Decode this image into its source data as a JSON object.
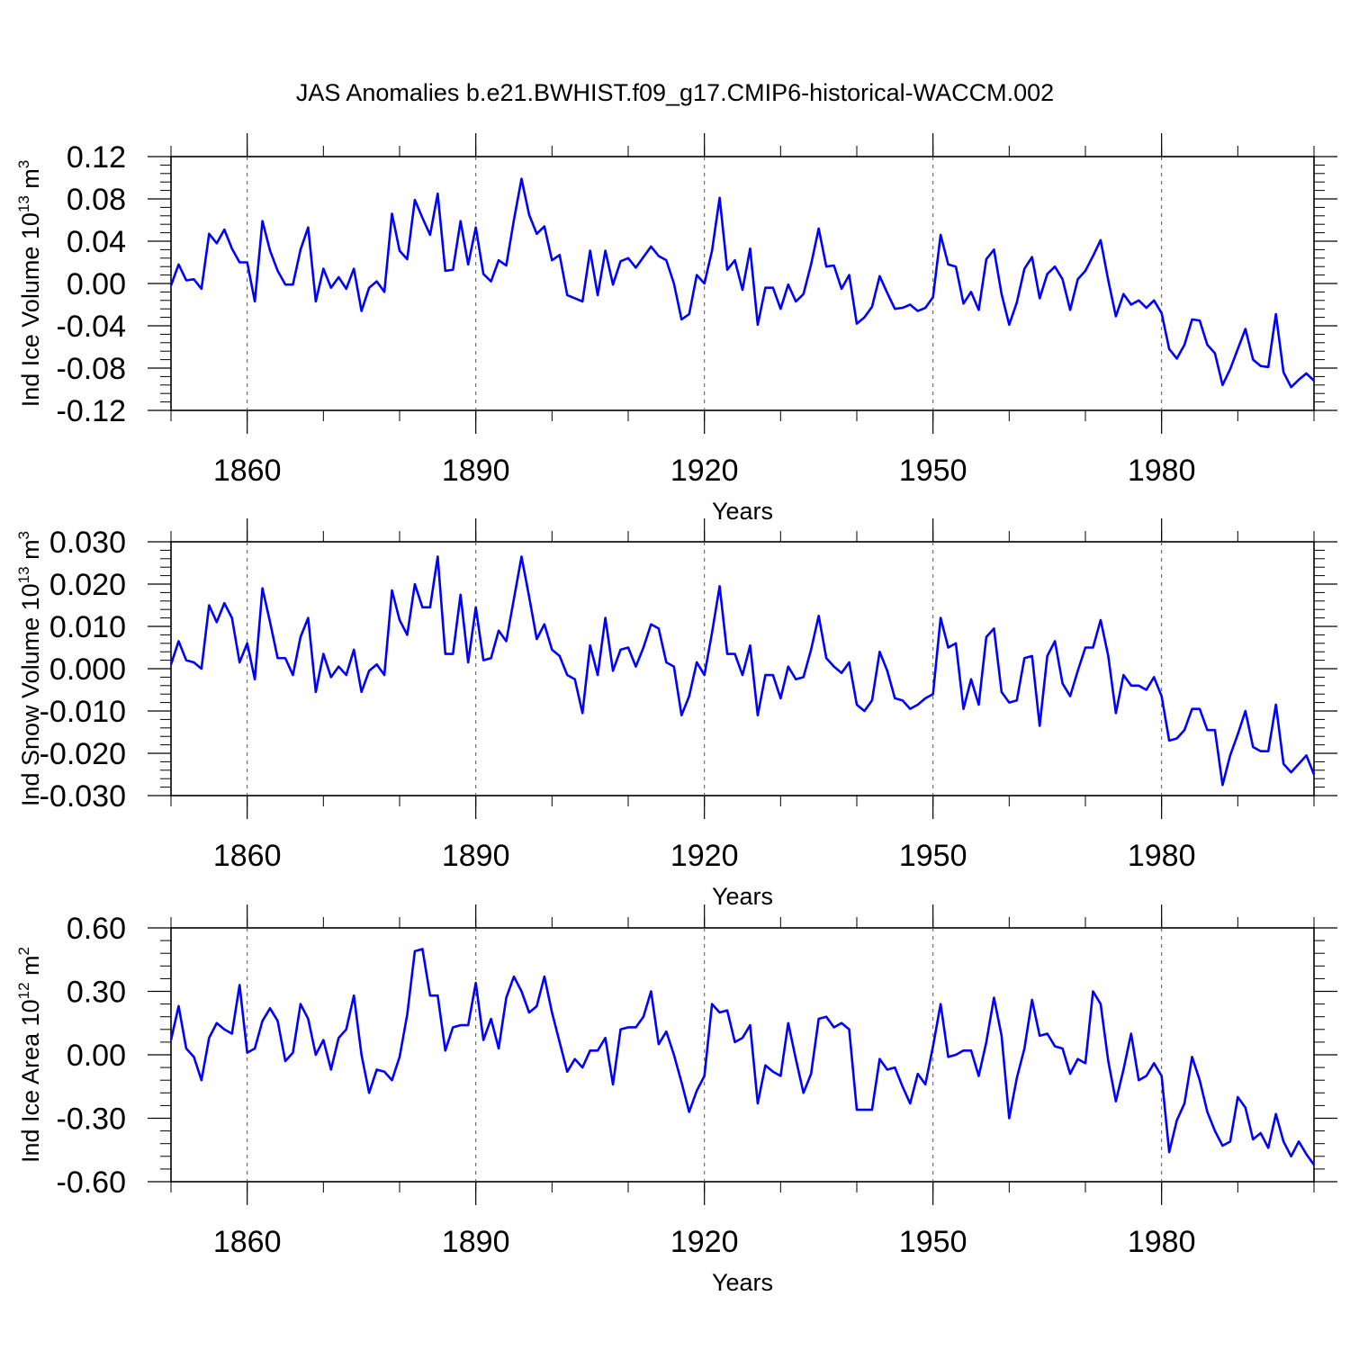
{
  "title": "JAS Anomalies b.e21.BWHIST.f09_g17.CMIP6-historical-WACCM.002",
  "line_color": "#0000ff",
  "chart_data": [
    {
      "type": "line",
      "ylabel": "Ind Ice Volume 10",
      "ylabel_exp": "13",
      "ylabel_unit": "m",
      "ylabel_unit_exp": "3",
      "xlabel": "Years",
      "xlim": [
        1850,
        2000
      ],
      "ylim": [
        -0.12,
        0.12
      ],
      "xticks": [
        1860,
        1890,
        1920,
        1950,
        1980
      ],
      "xtick_labels": [
        "1860",
        "1890",
        "1920",
        "1950",
        "1980"
      ],
      "yticks": [
        0.12,
        0.08,
        0.04,
        0.0,
        -0.04,
        -0.08,
        -0.12
      ],
      "ytick_labels": [
        "0.12",
        "0.08",
        "0.04",
        "0.00",
        "-0.04",
        "-0.08",
        "-0.12"
      ],
      "x_start": 1850,
      "values": [
        -0.002,
        0.018,
        0.003,
        0.004,
        -0.005,
        0.047,
        0.038,
        0.051,
        0.033,
        0.02,
        0.02,
        -0.017,
        0.059,
        0.031,
        0.012,
        -0.001,
        -0.001,
        0.032,
        0.053,
        -0.017,
        0.014,
        -0.004,
        0.006,
        -0.005,
        0.014,
        -0.026,
        -0.004,
        0.002,
        -0.008,
        0.066,
        0.031,
        0.023,
        0.079,
        0.062,
        0.046,
        0.085,
        0.012,
        0.013,
        0.059,
        0.018,
        0.053,
        0.009,
        0.002,
        0.022,
        0.017,
        0.06,
        0.099,
        0.065,
        0.047,
        0.054,
        0.022,
        0.027,
        -0.011,
        -0.014,
        -0.017,
        0.031,
        -0.011,
        0.031,
        -0.001,
        0.021,
        0.024,
        0.015,
        0.025,
        0.035,
        0.026,
        0.022,
        0.0,
        -0.034,
        -0.029,
        0.008,
        0.0,
        0.031,
        0.081,
        0.013,
        0.022,
        -0.006,
        0.033,
        -0.039,
        -0.004,
        -0.004,
        -0.024,
        -0.001,
        -0.017,
        -0.01,
        0.018,
        0.052,
        0.016,
        0.017,
        -0.005,
        0.008,
        -0.038,
        -0.032,
        -0.022,
        0.007,
        -0.009,
        -0.024,
        -0.023,
        -0.02,
        -0.026,
        -0.023,
        -0.013,
        0.046,
        0.018,
        0.016,
        -0.019,
        -0.008,
        -0.025,
        0.023,
        0.032,
        -0.01,
        -0.039,
        -0.018,
        0.014,
        0.025,
        -0.014,
        0.009,
        0.016,
        0.004,
        -0.025,
        0.004,
        0.012,
        0.026,
        0.041,
        0.003,
        -0.031,
        -0.01,
        -0.02,
        -0.016,
        -0.023,
        -0.016,
        -0.028,
        -0.062,
        -0.071,
        -0.058,
        -0.034,
        -0.035,
        -0.058,
        -0.066,
        -0.096,
        -0.081,
        -0.062,
        -0.043,
        -0.072,
        -0.078,
        -0.079,
        -0.029,
        -0.084,
        -0.098,
        -0.091,
        -0.085,
        -0.092
      ]
    },
    {
      "type": "line",
      "ylabel": "Ind Snow Volume 10",
      "ylabel_exp": "13",
      "ylabel_unit": "m",
      "ylabel_unit_exp": "3",
      "xlabel": "Years",
      "xlim": [
        1850,
        2000
      ],
      "ylim": [
        -0.03,
        0.03
      ],
      "xticks": [
        1860,
        1890,
        1920,
        1950,
        1980
      ],
      "xtick_labels": [
        "1860",
        "1890",
        "1920",
        "1950",
        "1980"
      ],
      "yticks": [
        0.03,
        0.02,
        0.01,
        0.0,
        -0.01,
        -0.02,
        -0.03
      ],
      "ytick_labels": [
        "0.030",
        "0.020",
        "0.010",
        "0.000",
        "-0.010",
        "-0.020",
        "-0.030"
      ],
      "x_start": 1850,
      "values": [
        0.001,
        0.0065,
        0.002,
        0.0015,
        0.0,
        0.015,
        0.011,
        0.0155,
        0.012,
        0.0015,
        0.006,
        -0.0025,
        0.019,
        0.011,
        0.0025,
        0.0025,
        -0.0015,
        0.0075,
        0.012,
        -0.0055,
        0.0035,
        -0.002,
        0.0005,
        -0.0015,
        0.0045,
        -0.0055,
        -0.0005,
        0.001,
        -0.0015,
        0.0185,
        0.0115,
        0.008,
        0.02,
        0.0145,
        0.0145,
        0.0265,
        0.0035,
        0.0035,
        0.0175,
        0.0015,
        0.0145,
        0.002,
        0.0025,
        0.009,
        0.0065,
        0.0165,
        0.0265,
        0.017,
        0.007,
        0.0105,
        0.0045,
        0.003,
        -0.0015,
        -0.0025,
        -0.0105,
        0.0055,
        -0.0015,
        0.012,
        -0.0005,
        0.0045,
        0.005,
        0.0005,
        0.005,
        0.0105,
        0.0095,
        0.0015,
        0.0005,
        -0.011,
        -0.0065,
        0.0015,
        -0.0015,
        0.0085,
        0.0195,
        0.0035,
        0.0035,
        -0.0015,
        0.0055,
        -0.011,
        -0.0015,
        -0.0015,
        -0.007,
        0.0005,
        -0.0025,
        -0.002,
        0.0045,
        0.0125,
        0.0025,
        0.0005,
        -0.001,
        0.0015,
        -0.0085,
        -0.01,
        -0.0075,
        0.004,
        -0.0005,
        -0.007,
        -0.0075,
        -0.0095,
        -0.0085,
        -0.007,
        -0.006,
        0.012,
        0.005,
        0.006,
        -0.0095,
        -0.0025,
        -0.0085,
        0.0075,
        0.0095,
        -0.0055,
        -0.008,
        -0.0075,
        0.0025,
        0.003,
        -0.0135,
        0.003,
        0.0065,
        -0.0035,
        -0.0065,
        -0.0005,
        0.005,
        0.005,
        0.0115,
        0.003,
        -0.0105,
        -0.0015,
        -0.004,
        -0.004,
        -0.005,
        -0.002,
        -0.0065,
        -0.017,
        -0.0165,
        -0.0145,
        -0.0095,
        -0.0095,
        -0.0145,
        -0.0145,
        -0.0275,
        -0.0205,
        -0.0155,
        -0.01,
        -0.0185,
        -0.0195,
        -0.0195,
        -0.0085,
        -0.0225,
        -0.0245,
        -0.0225,
        -0.0205,
        -0.025
      ]
    },
    {
      "type": "line",
      "ylabel": "Ind Ice Area 10",
      "ylabel_exp": "12",
      "ylabel_unit": "m",
      "ylabel_unit_exp": "2",
      "xlabel": "Years",
      "xlim": [
        1850,
        2000
      ],
      "ylim": [
        -0.6,
        0.6
      ],
      "xticks": [
        1860,
        1890,
        1920,
        1950,
        1980
      ],
      "xtick_labels": [
        "1860",
        "1890",
        "1920",
        "1950",
        "1980"
      ],
      "yticks": [
        0.6,
        0.3,
        0.0,
        -0.3,
        -0.6
      ],
      "ytick_labels": [
        "0.60",
        "0.30",
        "0.00",
        "-0.30",
        "-0.60"
      ],
      "x_start": 1850,
      "values": [
        0.07,
        0.23,
        0.03,
        -0.01,
        -0.12,
        0.08,
        0.15,
        0.12,
        0.1,
        0.33,
        0.01,
        0.03,
        0.16,
        0.22,
        0.16,
        -0.03,
        0.01,
        0.24,
        0.17,
        0.0,
        0.07,
        -0.07,
        0.08,
        0.12,
        0.28,
        0.0,
        -0.18,
        -0.07,
        -0.08,
        -0.12,
        -0.01,
        0.19,
        0.49,
        0.5,
        0.28,
        0.28,
        0.02,
        0.13,
        0.14,
        0.14,
        0.34,
        0.07,
        0.17,
        0.03,
        0.27,
        0.37,
        0.3,
        0.2,
        0.23,
        0.37,
        0.2,
        0.06,
        -0.08,
        -0.02,
        -0.06,
        0.02,
        0.02,
        0.08,
        -0.14,
        0.12,
        0.13,
        0.13,
        0.18,
        0.3,
        0.05,
        0.11,
        0.0,
        -0.13,
        -0.27,
        -0.17,
        -0.1,
        0.24,
        0.2,
        0.21,
        0.06,
        0.08,
        0.14,
        -0.23,
        -0.05,
        -0.08,
        -0.1,
        0.15,
        -0.02,
        -0.18,
        -0.09,
        0.17,
        0.18,
        0.13,
        0.15,
        0.12,
        -0.26,
        -0.26,
        -0.26,
        -0.02,
        -0.07,
        -0.06,
        -0.15,
        -0.23,
        -0.09,
        -0.14,
        0.04,
        0.24,
        -0.01,
        0.0,
        0.02,
        0.02,
        -0.1,
        0.06,
        0.27,
        0.09,
        -0.3,
        -0.11,
        0.03,
        0.26,
        0.09,
        0.1,
        0.04,
        0.03,
        -0.09,
        -0.02,
        -0.04,
        0.3,
        0.24,
        -0.03,
        -0.22,
        -0.07,
        0.1,
        -0.12,
        -0.1,
        -0.04,
        -0.1,
        -0.46,
        -0.31,
        -0.23,
        -0.01,
        -0.12,
        -0.27,
        -0.36,
        -0.43,
        -0.41,
        -0.2,
        -0.25,
        -0.4,
        -0.37,
        -0.44,
        -0.28,
        -0.41,
        -0.48,
        -0.41,
        -0.47,
        -0.52
      ]
    }
  ]
}
